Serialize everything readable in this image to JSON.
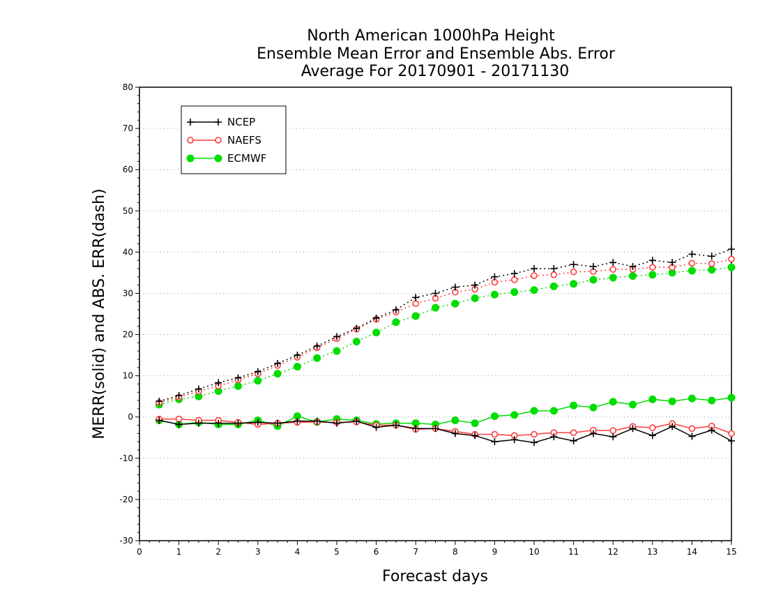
{
  "chart_data": {
    "type": "line",
    "title_lines": [
      "North American 1000hPa Height",
      "Ensemble Mean Error and Ensemble Abs. Error",
      "Average For 20170901 - 20171130"
    ],
    "xlabel": "Forecast days",
    "ylabel": "MERR(solid) and ABS. ERR(dash)",
    "xlim": [
      0,
      15
    ],
    "ylim": [
      -30,
      80
    ],
    "xticks": [
      0,
      1,
      2,
      3,
      4,
      5,
      6,
      7,
      8,
      9,
      10,
      11,
      12,
      13,
      14,
      15
    ],
    "yticks": [
      -30,
      -20,
      -10,
      0,
      10,
      20,
      30,
      40,
      50,
      60,
      70,
      80
    ],
    "grid": "horizontal dotted",
    "legend_position": "top-left",
    "x": [
      0.5,
      1,
      1.5,
      2,
      2.5,
      3,
      3.5,
      4,
      4.5,
      5,
      5.5,
      6,
      6.5,
      7,
      7.5,
      8,
      8.5,
      9,
      9.5,
      10,
      10.5,
      11,
      11.5,
      12,
      12.5,
      13,
      13.5,
      14,
      14.5,
      15
    ],
    "series": [
      {
        "name": "NCEP",
        "color": "#000000",
        "marker": "plus",
        "abs_err": [
          3.8,
          5.2,
          6.8,
          8.3,
          9.5,
          11.0,
          13.0,
          15.0,
          17.2,
          19.5,
          21.5,
          24.0,
          26.0,
          29.0,
          30.0,
          31.5,
          32.0,
          34.0,
          34.8,
          36.0,
          36.0,
          37.0,
          36.5,
          37.5,
          36.5,
          38.0,
          37.5,
          39.5,
          39.0,
          40.7
        ],
        "mean_err": [
          -0.8,
          -1.8,
          -1.5,
          -1.5,
          -1.5,
          -1.3,
          -1.5,
          -1.0,
          -1.0,
          -1.5,
          -1.0,
          -2.5,
          -2.0,
          -2.8,
          -2.8,
          -4.0,
          -4.5,
          -6.0,
          -5.5,
          -6.2,
          -4.8,
          -5.8,
          -4.0,
          -4.8,
          -2.8,
          -4.5,
          -2.3,
          -4.7,
          -3.2,
          -5.8
        ]
      },
      {
        "name": "NAEFS",
        "color": "#ff3b3b",
        "marker": "open-circle",
        "abs_err": [
          3.5,
          4.8,
          6.2,
          7.5,
          9.0,
          10.5,
          12.5,
          14.5,
          16.8,
          19.0,
          21.3,
          23.7,
          25.5,
          27.5,
          28.8,
          30.3,
          31.0,
          32.7,
          33.3,
          34.3,
          34.5,
          35.2,
          35.3,
          35.8,
          35.8,
          36.3,
          36.3,
          37.3,
          37.2,
          38.3
        ],
        "mean_err": [
          -0.5,
          -0.5,
          -0.8,
          -0.8,
          -1.3,
          -1.8,
          -1.5,
          -1.3,
          -1.2,
          -1.3,
          -1.2,
          -2.0,
          -2.0,
          -3.0,
          -2.8,
          -3.5,
          -4.2,
          -4.2,
          -4.5,
          -4.2,
          -3.8,
          -3.8,
          -3.2,
          -3.3,
          -2.3,
          -2.6,
          -1.6,
          -2.8,
          -2.2,
          -4.0
        ]
      },
      {
        "name": "ECMWF",
        "color": "#00dd00",
        "marker": "filled-circle",
        "abs_err": [
          3.0,
          4.3,
          5.0,
          6.3,
          7.5,
          8.8,
          10.5,
          12.2,
          14.3,
          16.0,
          18.3,
          20.5,
          23.0,
          24.5,
          26.5,
          27.5,
          28.8,
          29.7,
          30.3,
          30.8,
          31.7,
          32.3,
          33.3,
          33.8,
          34.2,
          34.5,
          35.0,
          35.5,
          35.7,
          36.3
        ],
        "mean_err": [
          -0.8,
          -1.8,
          -1.3,
          -1.8,
          -1.8,
          -0.8,
          -2.2,
          0.2,
          -1.2,
          -0.5,
          -0.8,
          -1.7,
          -1.5,
          -1.5,
          -1.8,
          -0.8,
          -1.5,
          0.2,
          0.5,
          1.5,
          1.5,
          2.8,
          2.3,
          3.7,
          3.0,
          4.3,
          3.8,
          4.5,
          4.0,
          4.7
        ]
      }
    ]
  }
}
